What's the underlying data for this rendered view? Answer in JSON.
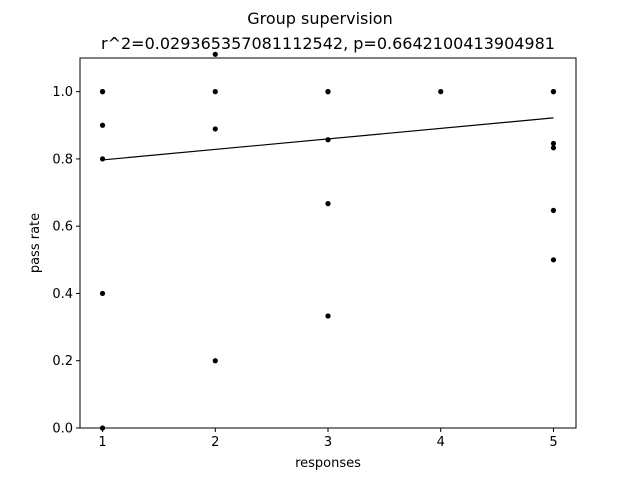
{
  "chart_data": {
    "type": "scatter",
    "title": "Group supervision",
    "subtitle": "r^2=0.029365357081112542, p=0.6642100413904981",
    "xlabel": "responses",
    "ylabel": "pass rate",
    "xlim": [
      0.8,
      5.2
    ],
    "ylim": [
      0.0,
      1.1
    ],
    "xticks": [
      1,
      2,
      3,
      4,
      5
    ],
    "yticks": [
      0.0,
      0.2,
      0.4,
      0.6,
      0.8,
      1.0
    ],
    "xtick_labels": [
      "1",
      "2",
      "3",
      "4",
      "5"
    ],
    "ytick_labels": [
      "0.0",
      "0.2",
      "0.4",
      "0.6",
      "0.8",
      "1.0"
    ],
    "grid": false,
    "series": [
      {
        "points": [
          {
            "x": 1,
            "y": 1.0
          },
          {
            "x": 1,
            "y": 1.0
          },
          {
            "x": 1,
            "y": 0.9
          },
          {
            "x": 1,
            "y": 0.8
          },
          {
            "x": 1,
            "y": 0.4
          },
          {
            "x": 1,
            "y": 0.0
          },
          {
            "x": 2,
            "y": 1.111
          },
          {
            "x": 2,
            "y": 1.0
          },
          {
            "x": 2,
            "y": 0.889
          },
          {
            "x": 2,
            "y": 0.2
          },
          {
            "x": 3,
            "y": 1.0
          },
          {
            "x": 3,
            "y": 1.0
          },
          {
            "x": 3,
            "y": 0.857
          },
          {
            "x": 3,
            "y": 0.667
          },
          {
            "x": 3,
            "y": 0.333
          },
          {
            "x": 4,
            "y": 1.0
          },
          {
            "x": 5,
            "y": 1.0
          },
          {
            "x": 5,
            "y": 1.0
          },
          {
            "x": 5,
            "y": 0.846
          },
          {
            "x": 5,
            "y": 0.833
          },
          {
            "x": 5,
            "y": 0.647
          },
          {
            "x": 5,
            "y": 0.5
          }
        ]
      }
    ],
    "fit_line": {
      "x": [
        1,
        5
      ],
      "y": [
        0.797,
        0.922
      ]
    },
    "colors": {
      "points": "#000000",
      "line": "#000000",
      "axes": "#000000"
    }
  }
}
